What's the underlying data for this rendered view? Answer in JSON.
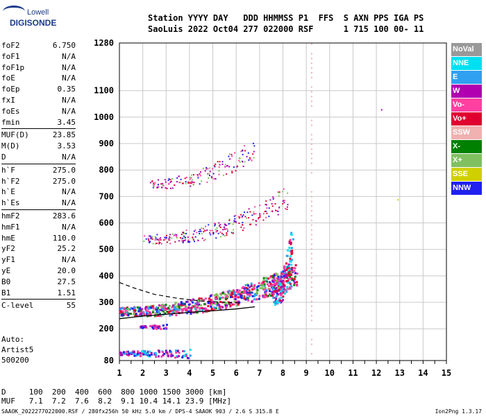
{
  "logo": {
    "line1": "Lowell",
    "line2": "DIGISONDE"
  },
  "header": {
    "line1": "Station YYYY DAY   DDD HHMMSS P1  FFS  S AXN PPS IGA PS",
    "line2": "SaoLuis 2022 Oct04 277 022000 RSF      1 715 100 00- 11"
  },
  "params": {
    "group1": [
      {
        "k": "foF2",
        "v": "6.750"
      },
      {
        "k": "foF1",
        "v": "N/A"
      },
      {
        "k": "foF1p",
        "v": "N/A"
      },
      {
        "k": "foE",
        "v": "N/A"
      },
      {
        "k": "foEp",
        "v": "0.35"
      },
      {
        "k": "fxI",
        "v": "N/A"
      },
      {
        "k": "foEs",
        "v": "N/A"
      },
      {
        "k": "fmin",
        "v": "3.45"
      }
    ],
    "group2": [
      {
        "k": "MUF(D)",
        "v": "23.85"
      },
      {
        "k": "M(D)",
        "v": "3.53"
      },
      {
        "k": "D",
        "v": "N/A"
      }
    ],
    "group3": [
      {
        "k": "h`F",
        "v": "275.0"
      },
      {
        "k": "h`F2",
        "v": "275.0"
      },
      {
        "k": "h`E",
        "v": "N/A"
      },
      {
        "k": "h`Es",
        "v": "N/A"
      }
    ],
    "group4": [
      {
        "k": "hmF2",
        "v": "283.6"
      },
      {
        "k": "hmF1",
        "v": "N/A"
      },
      {
        "k": "hmE",
        "v": "110.0"
      },
      {
        "k": "yF2",
        "v": "25.2"
      },
      {
        "k": "yF1",
        "v": "N/A"
      },
      {
        "k": "yE",
        "v": "20.0"
      },
      {
        "k": "B0",
        "v": "27.5"
      },
      {
        "k": "B1",
        "v": "1.51"
      }
    ],
    "group5": [
      {
        "k": "C-level",
        "v": "55"
      }
    ]
  },
  "auto": {
    "line1": "Auto:",
    "line2": "Artist5",
    "line3": "500200"
  },
  "legend": [
    {
      "label": "NoVal",
      "color": "#999999"
    },
    {
      "label": "NNE",
      "color": "#00e0f0"
    },
    {
      "label": "E",
      "color": "#30a0f0"
    },
    {
      "label": "W",
      "color": "#b000b0"
    },
    {
      "label": "Vo-",
      "color": "#ff40a0"
    },
    {
      "label": "Vo+",
      "color": "#e00030"
    },
    {
      "label": "SSW",
      "color": "#f0b0b0"
    },
    {
      "label": "X-",
      "color": "#008000"
    },
    {
      "label": "X+",
      "color": "#80c060"
    },
    {
      "label": "SSE",
      "color": "#d0d000"
    },
    {
      "label": "NNW",
      "color": "#2020f0"
    }
  ],
  "chart_data": {
    "type": "scatter",
    "x_ticks": [
      "1",
      "2",
      "3",
      "4",
      "5",
      "6",
      "7",
      "8",
      "9",
      "10",
      "11",
      "12",
      "13",
      "14",
      "15"
    ],
    "y_ticks": [
      "80",
      "200",
      "300",
      "400",
      "500",
      "600",
      "700",
      "800",
      "900",
      "1000",
      "1100",
      "1280"
    ],
    "xlim": [
      1,
      15
    ],
    "ylim": [
      80,
      1280
    ],
    "y_tick_values": [
      80,
      200,
      300,
      400,
      500,
      600,
      700,
      800,
      900,
      1000,
      1100,
      1280
    ],
    "grid": true,
    "profile_curve": {
      "x": [
        1.0,
        2.0,
        3.0,
        4.0,
        5.0,
        6.0,
        6.8
      ],
      "y": [
        238,
        248,
        255,
        262,
        268,
        275,
        283
      ]
    },
    "dashed_curve": {
      "x": [
        1.0,
        1.6,
        2.5,
        3.5,
        4.5,
        5.5,
        6.2
      ],
      "y": [
        375,
        355,
        330,
        315,
        305,
        300,
        298
      ]
    },
    "traces": [
      {
        "name": "o-trace",
        "x0": 1.0,
        "x1": 8.6,
        "y0": 268,
        "y1": 410
      },
      {
        "name": "2nd-hop",
        "x0": 2.0,
        "x1": 8.2,
        "y0": 540,
        "y1": 700
      },
      {
        "name": "3rd-hop",
        "x0": 2.3,
        "x1": 6.8,
        "y0": 750,
        "y1": 890
      }
    ]
  },
  "bottom": {
    "line1": "D     100  200  400  600  800 1000 1500 3000 [km]",
    "line2": "MUF   7.1  7.2  7.6  8.2  9.1 10.4 14.1 23.9 [MHz]"
  },
  "footer": {
    "left": "SAAOK_2022277022000.RSF / 280fx256h 50 kHz 5.0 km / DPS-4 SAAOK 903 / 2.6 S 315.8 E",
    "right": "Ion2Png 1.3.17"
  }
}
